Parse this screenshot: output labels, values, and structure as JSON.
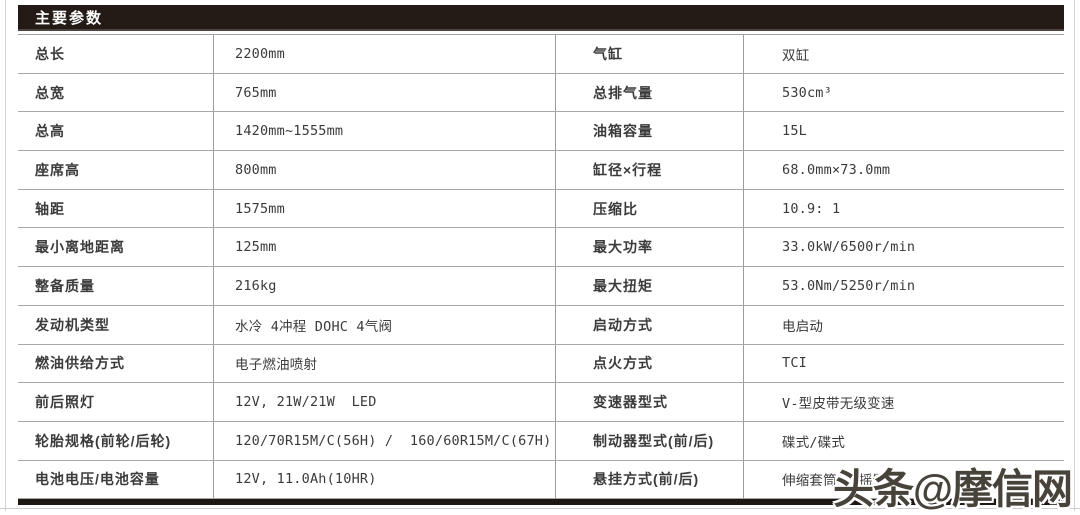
{
  "header": {
    "title": "主要参数"
  },
  "table": {
    "rows": [
      {
        "label1": "总长",
        "value1": "2200mm",
        "label2": "气缸",
        "value2": "双缸"
      },
      {
        "label1": "总宽",
        "value1": "765mm",
        "label2": "总排气量",
        "value2": "530cm³"
      },
      {
        "label1": "总高",
        "value1": "1420mm~1555mm",
        "label2": "油箱容量",
        "value2": "15L"
      },
      {
        "label1": "座席高",
        "value1": "800mm",
        "label2": "缸径×行程",
        "value2": "68.0mm×73.0mm"
      },
      {
        "label1": "轴距",
        "value1": "1575mm",
        "label2": "压缩比",
        "value2": "10.9: 1"
      },
      {
        "label1": "最小离地距离",
        "value1": "125mm",
        "label2": "最大功率",
        "value2": "33.0kW/6500r/min"
      },
      {
        "label1": "整备质量",
        "value1": "216kg",
        "label2": "最大扭矩",
        "value2": "53.0Nm/5250r/min"
      },
      {
        "label1": "发动机类型",
        "value1": "水冷 4冲程 DOHC 4气阀",
        "label2": "启动方式",
        "value2": "电启动"
      },
      {
        "label1": "燃油供给方式",
        "value1": "电子燃油喷射",
        "label2": "点火方式",
        "value2": "TCI"
      },
      {
        "label1": "前后照灯",
        "value1": "12V, 21W/21W  LED",
        "label2": "变速器型式",
        "value2": "V-型皮带无级变速"
      },
      {
        "label1": "轮胎规格(前轮/后轮)",
        "value1": "120/70R15M/C(56H) /  160/60R15M/C(67H)",
        "label2": "制动器型式(前/后)",
        "value2": "碟式/碟式"
      },
      {
        "label1": "电池电压/电池容量",
        "value1": "12V, 11.0Ah(10HR)",
        "label2": "悬挂方式(前/后)",
        "value2": "伸缩套筒式/摇臂式"
      }
    ]
  },
  "watermark": {
    "text": "头条@摩信网"
  },
  "colors": {
    "header_bg": "#241b16",
    "rule_gray": "#a3a3a3",
    "bottom_rule": "#1f1712",
    "text": "#3b3b3b",
    "watermark": "#47423a"
  }
}
